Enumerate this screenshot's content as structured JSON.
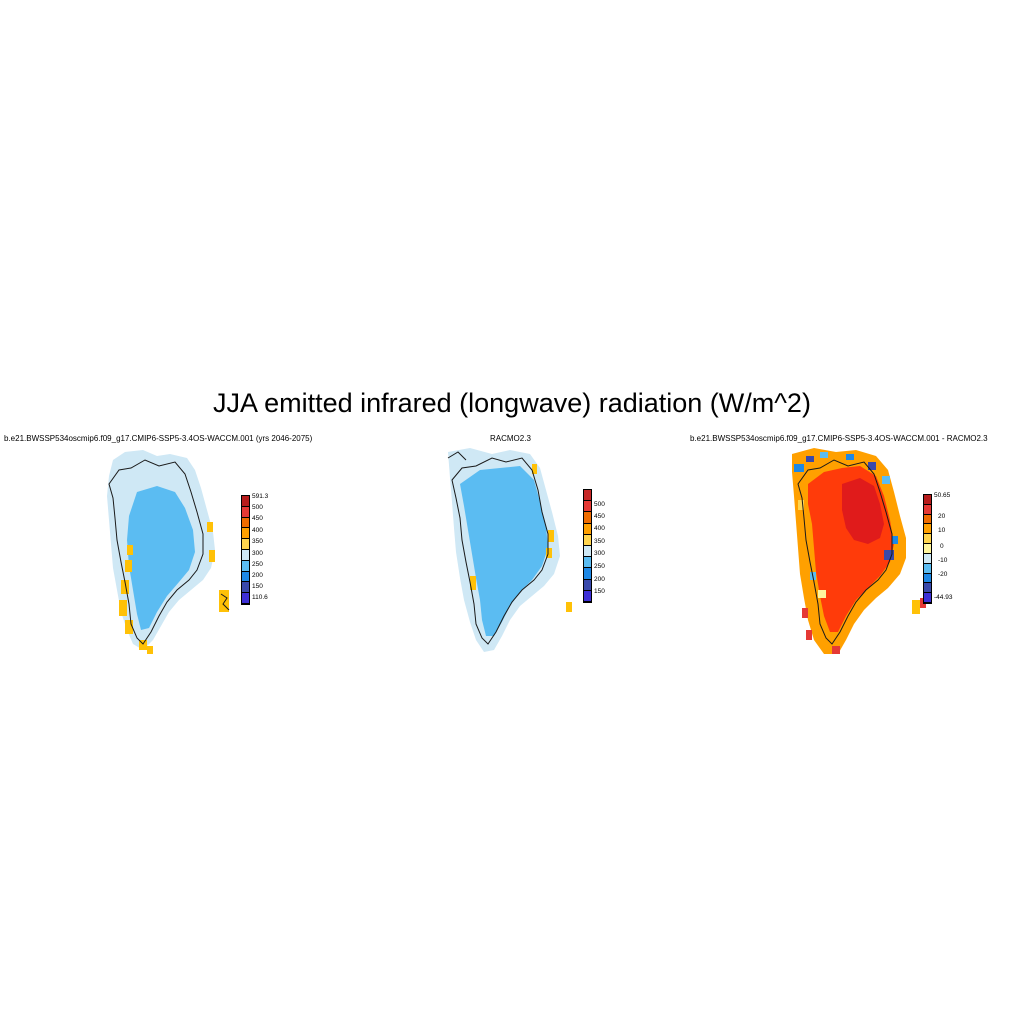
{
  "title": "JJA emitted infrared (longwave) radiation (W/m^2)",
  "panels": [
    {
      "id": "model",
      "title": "b.e21.BWSSP534oscmip6.f09_g17.CMIP6-SSP5-3.4OS-WACCM.001 (yrs 2046-2075)",
      "colorbar": {
        "labels": [
          "591.3",
          "500",
          "450",
          "400",
          "350",
          "300",
          "250",
          "200",
          "150",
          "110.6"
        ],
        "colors": [
          "#b71c1c",
          "#e53935",
          "#ef6c00",
          "#ffa000",
          "#ffd54f",
          "#cfe8f5",
          "#5bbcf2",
          "#1e88e5",
          "#3949ab",
          "#3d2fd6"
        ]
      }
    },
    {
      "id": "racmo",
      "title": "RACMO2.3",
      "colorbar": {
        "labels": [
          "500",
          "450",
          "400",
          "350",
          "300",
          "250",
          "200",
          "150"
        ],
        "colors": [
          "#c62828",
          "#e53935",
          "#ef6c00",
          "#ffa000",
          "#ffd54f",
          "#cfe8f5",
          "#5bbcf2",
          "#1e88e5",
          "#3949ab",
          "#3d2fd6"
        ]
      }
    },
    {
      "id": "difference",
      "title": "b.e21.BWSSP534oscmip6.f09_g17.CMIP6-SSP5-3.4OS-WACCM.001 - RACMO2.3",
      "colorbar": {
        "labels": [
          "50.65",
          "20",
          "10",
          "0",
          "-10",
          "-20",
          "-44.93"
        ],
        "colors": [
          "#b71c1c",
          "#e53935",
          "#ef6c00",
          "#ffa000",
          "#ffd54f",
          "#fff59d",
          "#cfe8f5",
          "#5bbcf2",
          "#1e88e5",
          "#3949ab",
          "#3d2fd6"
        ]
      }
    }
  ],
  "map_colors": {
    "ice_interior": "#5bbcf2",
    "margin": "#cfe8f5",
    "coast_warm": "#ffc107",
    "diff_core": "#e01b1b",
    "diff_main": "#ff3b0a",
    "diff_edge": "#ffa000",
    "coastline": "#1a1a1a"
  }
}
